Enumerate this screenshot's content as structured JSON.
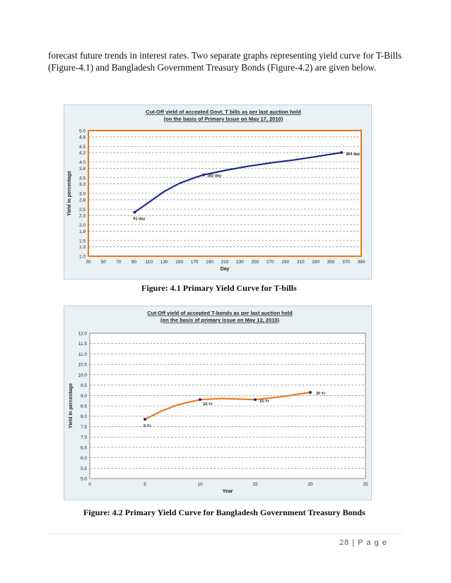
{
  "intro_text": "forecast future trends in interest rates. Two separate graphs representing yield curve for T-Bills (Figure-4.1) and Bangladesh Government Treasury Bonds (Figure-4.2) are given below.",
  "figure1_caption": "Figure: 4.1 Primary Yield Curve for T-bills",
  "figure2_caption": "Figure: 4.2 Primary Yield Curve for Bangladesh Government Treasury Bonds",
  "page_number": "28 | P a g e",
  "chart_data": [
    {
      "type": "line",
      "title": "Cut-Off yield of accepted Govt. T bills as per last auction hold",
      "subtitle": "(on the basis of Primary Issue on May 17, 2010)",
      "xlabel": "Day",
      "ylabel": "Yield in percentage",
      "xlim": [
        30,
        390
      ],
      "ylim": [
        1.0,
        5.0
      ],
      "xticks": [
        30,
        50,
        70,
        90,
        110,
        130,
        150,
        170,
        190,
        210,
        230,
        250,
        270,
        290,
        310,
        330,
        350,
        370,
        390
      ],
      "yticks": [
        "1.0",
        "1.3",
        "1.5",
        "1.8",
        "2.0",
        "2.3",
        "2.5",
        "2.8",
        "3.0",
        "3.3",
        "3.5",
        "3.8",
        "4.0",
        "4.3",
        "4.5",
        "4.8",
        "5.0"
      ],
      "grid": true,
      "line_color": "#1f2a86",
      "plot_border_color": "#e07c1c",
      "series": [
        {
          "x": [
            91,
            110,
            130,
            150,
            170,
            182,
            210,
            240,
            270,
            300,
            330,
            364
          ],
          "y": [
            2.4,
            2.72,
            3.06,
            3.32,
            3.5,
            3.59,
            3.73,
            3.86,
            3.97,
            4.06,
            4.17,
            4.3
          ]
        }
      ],
      "point_labels": [
        {
          "text": "91 day",
          "x": 91,
          "y": 2.4
        },
        {
          "text": "182 day",
          "x": 182,
          "y": 3.59
        },
        {
          "text": "364 day",
          "x": 364,
          "y": 4.3
        }
      ]
    },
    {
      "type": "line",
      "title": "Cut-Off yield of accepted T-bonds as per last auction held",
      "subtitle": "(on the basis of primary issue on May 12, 2010)",
      "xlabel": "Year",
      "ylabel": "Yield in percentage",
      "xlim": [
        0,
        25
      ],
      "ylim": [
        5.0,
        12.0
      ],
      "xticks": [
        0,
        5,
        10,
        15,
        20,
        25
      ],
      "yticks": [
        "5.0",
        "5.5",
        "6.0",
        "6.5",
        "7.0",
        "7.5",
        "8.0",
        "8.5",
        "9.0",
        "9.5",
        "10.0",
        "10.5",
        "11.0",
        "11.5",
        "12.0"
      ],
      "grid": true,
      "line_color": "#f07818",
      "series": [
        {
          "x": [
            5,
            6.5,
            8,
            10,
            12,
            15,
            17.5,
            20
          ],
          "y": [
            7.85,
            8.25,
            8.55,
            8.8,
            8.85,
            8.8,
            8.95,
            9.15
          ]
        }
      ],
      "point_labels": [
        {
          "text": "5-Yr",
          "x": 5,
          "y": 7.85
        },
        {
          "text": "10-Yr",
          "x": 10,
          "y": 8.8
        },
        {
          "text": "15-Yr",
          "x": 15,
          "y": 8.8
        },
        {
          "text": "20 Yr",
          "x": 20,
          "y": 9.15
        }
      ]
    }
  ]
}
